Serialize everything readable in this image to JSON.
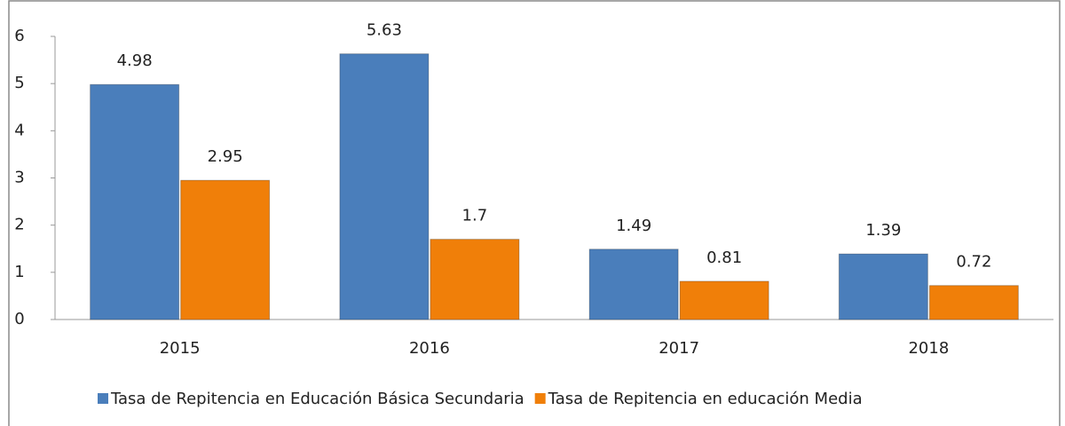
{
  "chart_data": {
    "type": "bar",
    "categories": [
      "2015",
      "2016",
      "2017",
      "2018"
    ],
    "series": [
      {
        "name": "Tasa de Repitencia en Educación Básica Secundaria",
        "color": "#4a7ebb",
        "values": [
          4.98,
          5.63,
          1.49,
          1.39
        ]
      },
      {
        "name": "Tasa de Repitencia en educación Media",
        "color": "#f07f09",
        "values": [
          2.95,
          1.7,
          0.81,
          0.72
        ]
      }
    ],
    "ylim": [
      0,
      6
    ],
    "yticks": [
      0,
      1,
      2,
      3,
      4,
      5,
      6
    ],
    "grid": false,
    "legend": "bottom"
  }
}
